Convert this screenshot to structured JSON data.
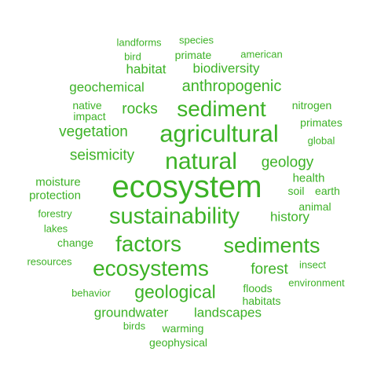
{
  "colors": {
    "background": "#ffffff",
    "word": "#3cb226"
  },
  "words": [
    {
      "text": "ecosystem",
      "weight": 100
    },
    {
      "text": "agricultural",
      "weight": 62
    },
    {
      "text": "sustainability",
      "weight": 59
    },
    {
      "text": "natural",
      "weight": 60
    },
    {
      "text": "factors",
      "weight": 56
    },
    {
      "text": "sediments",
      "weight": 53
    },
    {
      "text": "ecosystems",
      "weight": 56
    },
    {
      "text": "sediment",
      "weight": 56
    },
    {
      "text": "geological",
      "weight": 46
    },
    {
      "text": "anthropogenic",
      "weight": 39
    },
    {
      "text": "seismicity",
      "weight": 37
    },
    {
      "text": "vegetation",
      "weight": 37
    },
    {
      "text": "forest",
      "weight": 37
    },
    {
      "text": "geology",
      "weight": 37
    },
    {
      "text": "rocks",
      "weight": 37
    },
    {
      "text": "geochemical",
      "weight": 33
    },
    {
      "text": "biodiversity",
      "weight": 33
    },
    {
      "text": "history",
      "weight": 33
    },
    {
      "text": "groundwater",
      "weight": 33
    },
    {
      "text": "landscapes",
      "weight": 33
    },
    {
      "text": "habitat",
      "weight": 33
    },
    {
      "text": "moisture",
      "weight": 28
    },
    {
      "text": "protection",
      "weight": 28
    },
    {
      "text": "health",
      "weight": 28
    },
    {
      "text": "soil",
      "weight": 28
    },
    {
      "text": "earth",
      "weight": 26
    },
    {
      "text": "primates",
      "weight": 26
    },
    {
      "text": "impact",
      "weight": 26
    },
    {
      "text": "native",
      "weight": 26
    },
    {
      "text": "nitrogen",
      "weight": 26
    },
    {
      "text": "primate",
      "weight": 26
    },
    {
      "text": "warming",
      "weight": 26
    },
    {
      "text": "geophysical",
      "weight": 26
    },
    {
      "text": "habitats",
      "weight": 26
    },
    {
      "text": "floods",
      "weight": 26
    },
    {
      "text": "change",
      "weight": 26
    },
    {
      "text": "animal",
      "weight": 26
    },
    {
      "text": "forestry",
      "weight": 24
    },
    {
      "text": "lakes",
      "weight": 24
    },
    {
      "text": "global",
      "weight": 24
    },
    {
      "text": "environment",
      "weight": 24
    },
    {
      "text": "behavior",
      "weight": 24
    },
    {
      "text": "species",
      "weight": 24
    },
    {
      "text": "american",
      "weight": 24
    },
    {
      "text": "landforms",
      "weight": 24
    },
    {
      "text": "bird",
      "weight": 22
    },
    {
      "text": "birds",
      "weight": 22
    },
    {
      "text": "resources",
      "weight": 22
    },
    {
      "text": "insect",
      "weight": 22
    }
  ]
}
